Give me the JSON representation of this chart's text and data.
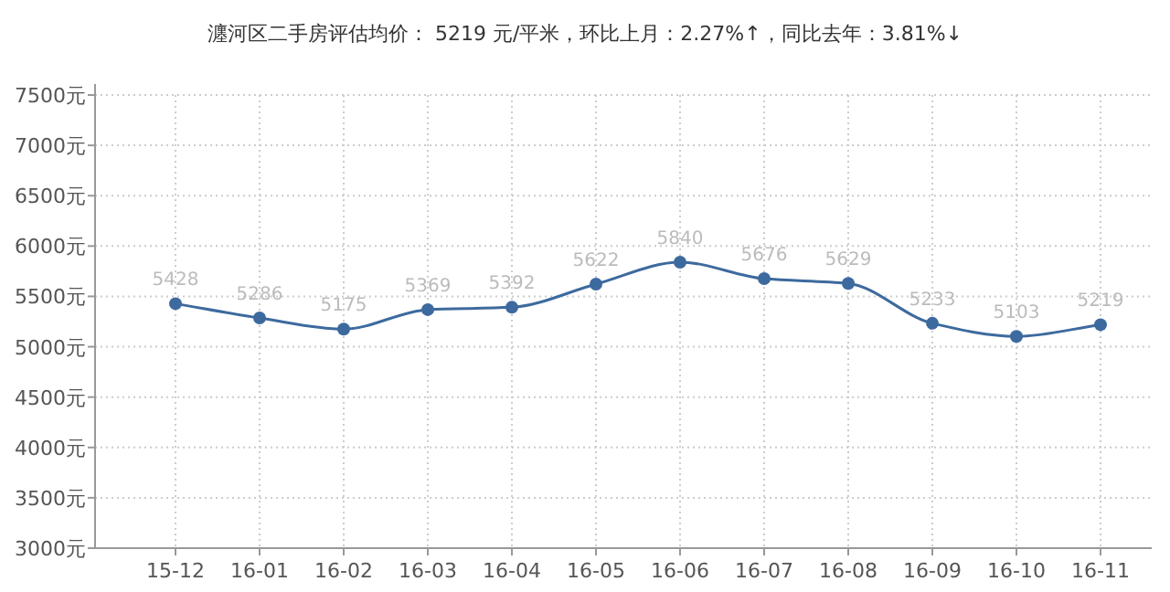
{
  "chart_data": {
    "type": "line",
    "title": "瀍河区二手房评估均价： 5219 元/平米，环比上月：2.27%↑，同比去年：3.81%↓",
    "categories": [
      "15-12",
      "16-01",
      "16-02",
      "16-03",
      "16-04",
      "16-05",
      "16-06",
      "16-07",
      "16-08",
      "16-09",
      "16-10",
      "16-11"
    ],
    "series": [
      {
        "color": "#3d6a9e",
        "values": [
          5428,
          5286,
          5175,
          5369,
          5392,
          5622,
          5840,
          5676,
          5629,
          5233,
          5103,
          5219
        ]
      }
    ],
    "ylim": [
      3000,
      7500
    ],
    "yticks": [
      {
        "value": 3000,
        "label": "3000元"
      },
      {
        "value": 3500,
        "label": "3500元"
      },
      {
        "value": 4000,
        "label": "4000元"
      },
      {
        "value": 4500,
        "label": "4500元"
      },
      {
        "value": 5000,
        "label": "5000元"
      },
      {
        "value": 5500,
        "label": "5500元"
      },
      {
        "value": 6000,
        "label": "6000元"
      },
      {
        "value": 6500,
        "label": "6500元"
      },
      {
        "value": 7000,
        "label": "7000元"
      },
      {
        "value": 7500,
        "label": "7500元"
      }
    ],
    "grid": true,
    "marker": "circle",
    "line_style": "solid",
    "data_labels": true
  }
}
